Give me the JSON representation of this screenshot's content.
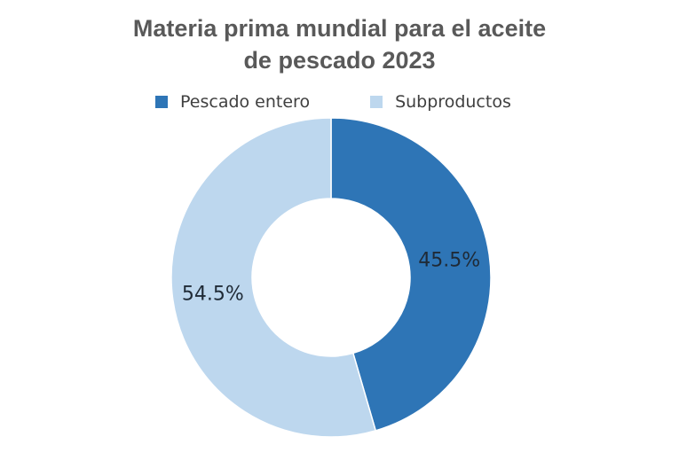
{
  "chart_data": {
    "type": "pie",
    "donut": true,
    "title_lines": [
      "Materia prima mundial para el aceite",
      "de pescado 2023"
    ],
    "categories": [
      "Pescado entero",
      "Subproductos"
    ],
    "values": [
      45.5,
      54.5
    ],
    "labels": [
      "45.5%",
      "54.5%"
    ],
    "colors": [
      "#2e75b6",
      "#bdd7ee"
    ],
    "legend_position": "top"
  }
}
